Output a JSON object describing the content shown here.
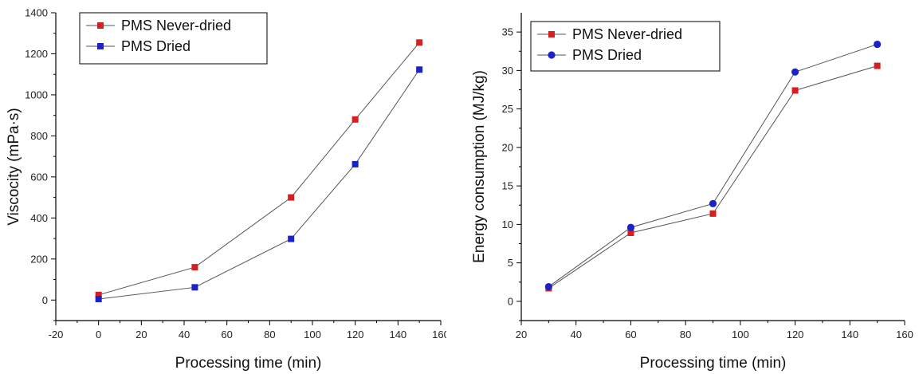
{
  "chart_data": [
    {
      "type": "line",
      "xlabel": "Processing time (min)",
      "ylabel": "Viscocity (mPa·s)",
      "xlim": [
        -20,
        160
      ],
      "ylim": [
        -100,
        1400
      ],
      "xticks": [
        -20,
        0,
        20,
        40,
        60,
        80,
        100,
        120,
        140,
        160
      ],
      "yticks": [
        0,
        200,
        400,
        600,
        800,
        1000,
        1200,
        1400
      ],
      "legend_position": "top-left",
      "series": [
        {
          "name": "PMS Never-dried",
          "color": "#d42020",
          "marker": "square",
          "x": [
            0,
            45,
            90,
            120,
            150
          ],
          "y": [
            25,
            160,
            500,
            880,
            1255
          ]
        },
        {
          "name": "PMS Dried",
          "color": "#1a22c8",
          "marker": "square",
          "x": [
            0,
            45,
            90,
            120,
            150
          ],
          "y": [
            5,
            62,
            298,
            662,
            1123
          ]
        }
      ]
    },
    {
      "type": "line",
      "xlabel": "Processing time (min)",
      "ylabel": "Energy consumption (MJ/kg)",
      "xlim": [
        20,
        160
      ],
      "ylim": [
        -2.5,
        37.5
      ],
      "xticks": [
        20,
        40,
        60,
        80,
        100,
        120,
        140,
        160
      ],
      "yticks": [
        0,
        5,
        10,
        15,
        20,
        25,
        30,
        35
      ],
      "legend_position": "top-left",
      "series": [
        {
          "name": "PMS Never-dried",
          "color": "#d42020",
          "marker": "square",
          "x": [
            30,
            60,
            90,
            120,
            150
          ],
          "y": [
            1.7,
            8.9,
            11.4,
            27.4,
            30.6
          ]
        },
        {
          "name": "PMS Dried",
          "color": "#1a22c8",
          "marker": "circle",
          "x": [
            30,
            60,
            90,
            120,
            150
          ],
          "y": [
            1.9,
            9.6,
            12.7,
            29.8,
            33.4
          ]
        }
      ]
    }
  ]
}
